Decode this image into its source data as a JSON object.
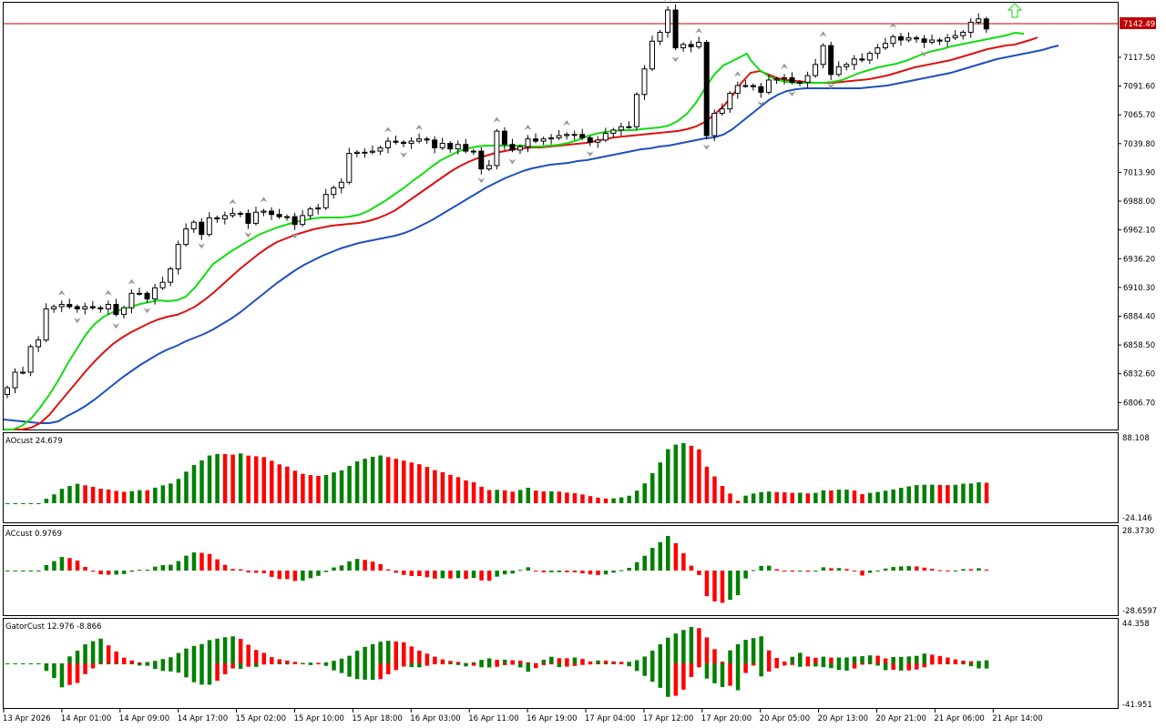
{
  "colors": {
    "background": "#ffffff",
    "frame": "#000000",
    "up_bar": "#008000",
    "down_bar": "#ff0000",
    "jaw": "#1f4fbf",
    "teeth": "#dd1111",
    "lips": "#11dd11",
    "price_line": "#c00000",
    "arrow": "#33dd33"
  },
  "price_label": "7142.49",
  "price_axis": [
    "7117.50",
    "7091.60",
    "7065.70",
    "7039.80",
    "7013.90",
    "6988.00",
    "6962.10",
    "6936.20",
    "6910.30",
    "6884.40",
    "6858.50",
    "6832.60",
    "6806.70"
  ],
  "x_labels": [
    "13 Apr 2026",
    "14 Apr 01:00",
    "14 Apr 09:00",
    "14 Apr 17:00",
    "15 Apr 02:00",
    "15 Apr 10:00",
    "15 Apr 18:00",
    "16 Apr 03:00",
    "16 Apr 11:00",
    "16 Apr 19:00",
    "17 Apr 04:00",
    "17 Apr 12:00",
    "17 Apr 20:00",
    "20 Apr 05:00",
    "20 Apr 13:00",
    "20 Apr 21:00",
    "21 Apr 06:00",
    "21 Apr 14:00"
  ],
  "indicators": {
    "ao": {
      "label": "AOcust 24.679",
      "top_value": "88.108",
      "bottom_value": "-24.146"
    },
    "ac": {
      "label": "ACcust 0.9769",
      "top_value": "28.3730",
      "bottom_value": "-28.6597"
    },
    "gator": {
      "label": "GatorCust 12.976 -8.866",
      "top_value": "44.358",
      "bottom_value": "-41.951"
    }
  },
  "chart_data": {
    "type": "candlestick",
    "ylim": [
      6782,
      7167
    ],
    "current_price": 7142.49,
    "close": [
      6820,
      6834,
      6834,
      6857,
      6863,
      6891,
      6893,
      6895,
      6893,
      6891,
      6893,
      6892,
      6891,
      6895,
      6886,
      6892,
      6905,
      6905,
      6900,
      6910,
      6915,
      6927,
      6949,
      6963,
      6969,
      6958,
      6973,
      6972,
      6975,
      6977,
      6977,
      6968,
      6978,
      6979,
      6976,
      6974,
      6974,
      6967,
      6975,
      6981,
      6982,
      6994,
      7000,
      7005,
      7031,
      7032,
      7032,
      7033,
      7036,
      7042,
      7041,
      7040,
      7042,
      7044,
      7043,
      7036,
      7040,
      7035,
      7039,
      7033,
      7033,
      7017,
      7020,
      7051,
      7039,
      7034,
      7037,
      7044,
      7042,
      7044,
      7045,
      7047,
      7048,
      7048,
      7045,
      7041,
      7043,
      7049,
      7052,
      7055,
      7055,
      7084,
      7107,
      7132,
      7140,
      7160,
      7126,
      7129,
      7127,
      7131,
      7047,
      7067,
      7071,
      7085,
      7092,
      7092,
      7091,
      7086,
      7097,
      7098,
      7099,
      7095,
      7095,
      7101,
      7111,
      7128,
      7102,
      7109,
      7111,
      7116,
      7115,
      7121,
      7126,
      7130,
      7136,
      7133,
      7135,
      7134,
      7131,
      7133,
      7132,
      7135,
      7137,
      7140,
      7149,
      7152,
      7143
    ]
  }
}
